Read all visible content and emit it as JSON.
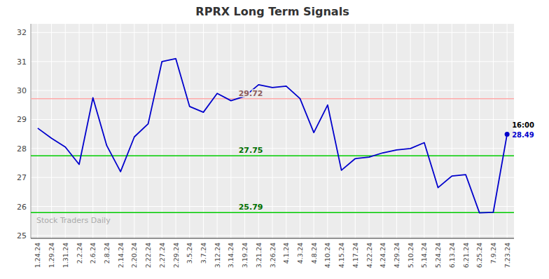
{
  "chart_data": {
    "type": "line",
    "title": "RPRX Long Term Signals",
    "categories": [
      "1.24.24",
      "1.29.24",
      "1.31.24",
      "2.2.24",
      "2.6.24",
      "2.8.24",
      "2.14.24",
      "2.20.24",
      "2.22.24",
      "2.27.24",
      "2.29.24",
      "3.5.24",
      "3.7.24",
      "3.12.24",
      "3.14.24",
      "3.19.24",
      "3.21.24",
      "3.26.24",
      "4.1.24",
      "4.3.24",
      "4.8.24",
      "4.10.24",
      "4.15.24",
      "4.17.24",
      "4.22.24",
      "4.24.24",
      "4.29.24",
      "5.10.24",
      "5.14.24",
      "5.24.24",
      "6.13.24",
      "6.21.24",
      "6.25.24",
      "7.9.24",
      "7.23.24"
    ],
    "values": [
      28.7,
      28.35,
      28.05,
      27.45,
      29.75,
      28.1,
      27.2,
      28.4,
      28.85,
      31.0,
      31.1,
      29.45,
      29.25,
      29.9,
      29.65,
      29.8,
      30.2,
      30.1,
      30.15,
      29.72,
      28.55,
      29.5,
      27.25,
      27.65,
      27.7,
      27.85,
      27.95,
      28.0,
      28.2,
      26.65,
      27.05,
      27.1,
      25.78,
      25.8,
      28.49
    ],
    "color": "#0000cc",
    "reference_lines": [
      {
        "value": 29.72,
        "label": "29.72",
        "color": "#ffaaaa"
      },
      {
        "value": 27.75,
        "label": "27.75",
        "color": "#00cc00"
      },
      {
        "value": 25.79,
        "label": "25.79",
        "color": "#00cc00"
      }
    ],
    "last_point": {
      "label": "16:00",
      "value": 28.49
    },
    "watermark": "Stock Traders Daily",
    "ylim": [
      24.9,
      32.3
    ],
    "yticks": [
      25,
      26,
      27,
      28,
      29,
      30,
      31,
      32
    ],
    "grid": true
  }
}
